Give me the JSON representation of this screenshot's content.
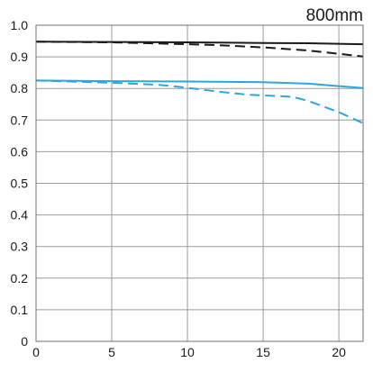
{
  "chart_data": {
    "type": "line",
    "title": "800mm",
    "xlabel": "",
    "ylabel": "",
    "xlim": [
      0,
      21.6
    ],
    "ylim": [
      0,
      1.0
    ],
    "grid": true,
    "x_ticks": [
      "0",
      "5",
      "10",
      "15",
      "20"
    ],
    "x_tick_values": [
      0,
      5,
      10,
      15,
      20
    ],
    "y_ticks": [
      "0",
      "0.1",
      "0.2",
      "0.3",
      "0.4",
      "0.5",
      "0.6",
      "0.7",
      "0.8",
      "0.9",
      "1.0"
    ],
    "y_tick_values": [
      0,
      0.1,
      0.2,
      0.3,
      0.4,
      0.5,
      0.6,
      0.7,
      0.8,
      0.9,
      1.0
    ],
    "series": [
      {
        "color": "#1a1a1a",
        "style": "solid",
        "x": [
          0,
          5,
          10,
          15,
          18,
          21.6
        ],
        "values": [
          0.948,
          0.947,
          0.946,
          0.944,
          0.943,
          0.94
        ]
      },
      {
        "color": "#1a1a1a",
        "style": "dashed",
        "x": [
          0,
          5,
          10,
          12,
          15,
          18,
          21.6
        ],
        "values": [
          0.948,
          0.946,
          0.94,
          0.937,
          0.93,
          0.92,
          0.901
        ]
      },
      {
        "color": "#2da5dd",
        "style": "solid",
        "x": [
          0,
          5,
          10,
          15,
          18,
          21.6
        ],
        "values": [
          0.825,
          0.823,
          0.822,
          0.82,
          0.815,
          0.801
        ]
      },
      {
        "color": "#2da5dd",
        "style": "dashed",
        "x": [
          0,
          5,
          8,
          10,
          12,
          14,
          16,
          17,
          18,
          20,
          21.6
        ],
        "values": [
          0.825,
          0.818,
          0.812,
          0.802,
          0.79,
          0.78,
          0.776,
          0.773,
          0.76,
          0.725,
          0.69
        ]
      }
    ]
  }
}
